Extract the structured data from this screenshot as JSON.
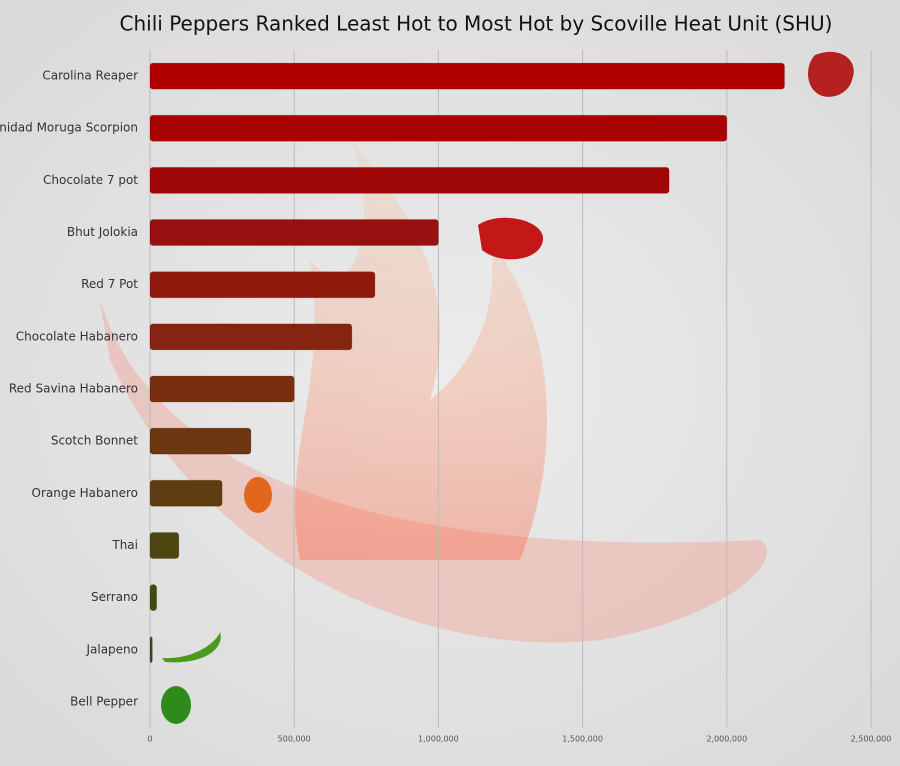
{
  "chart_data": {
    "type": "bar",
    "orientation": "horizontal",
    "title": "Chili Peppers Ranked Least Hot to Most Hot by Scoville Heat Unit (SHU)",
    "categories": [
      "Carolina Reaper",
      "Trinidad Moruga Scorpion",
      "Chocolate 7 pot",
      "Bhut Jolokia",
      "Red 7 Pot",
      "Chocolate Habanero",
      "Red Savina Habanero",
      "Scotch Bonnet",
      "Orange Habanero",
      "Thai",
      "Serrano",
      "Jalapeno",
      "Bell Pepper"
    ],
    "values": [
      2200000,
      2000000,
      1800000,
      1000000,
      780000,
      700000,
      500000,
      350000,
      250000,
      100000,
      23000,
      8000,
      0
    ],
    "colors": [
      "#b00000",
      "#a80303",
      "#a00808",
      "#981010",
      "#8f1a0c",
      "#852410",
      "#7a2e10",
      "#6d3510",
      "#5f3d10",
      "#4f4510",
      "#424a10",
      "#384d12",
      "#305010"
    ],
    "xlim": [
      0,
      2500000
    ],
    "xticks": [
      0,
      {
        "value": 500000,
        "label": "500,000"
      },
      {
        "value": 1000000,
        "label": "1,000,000"
      },
      {
        "value": 1500000,
        "label": "1,500,000"
      },
      {
        "value": 2000000,
        "label": "2,000,000"
      },
      {
        "value": 2500000,
        "label": "2,500,000"
      }
    ],
    "grid": true
  }
}
